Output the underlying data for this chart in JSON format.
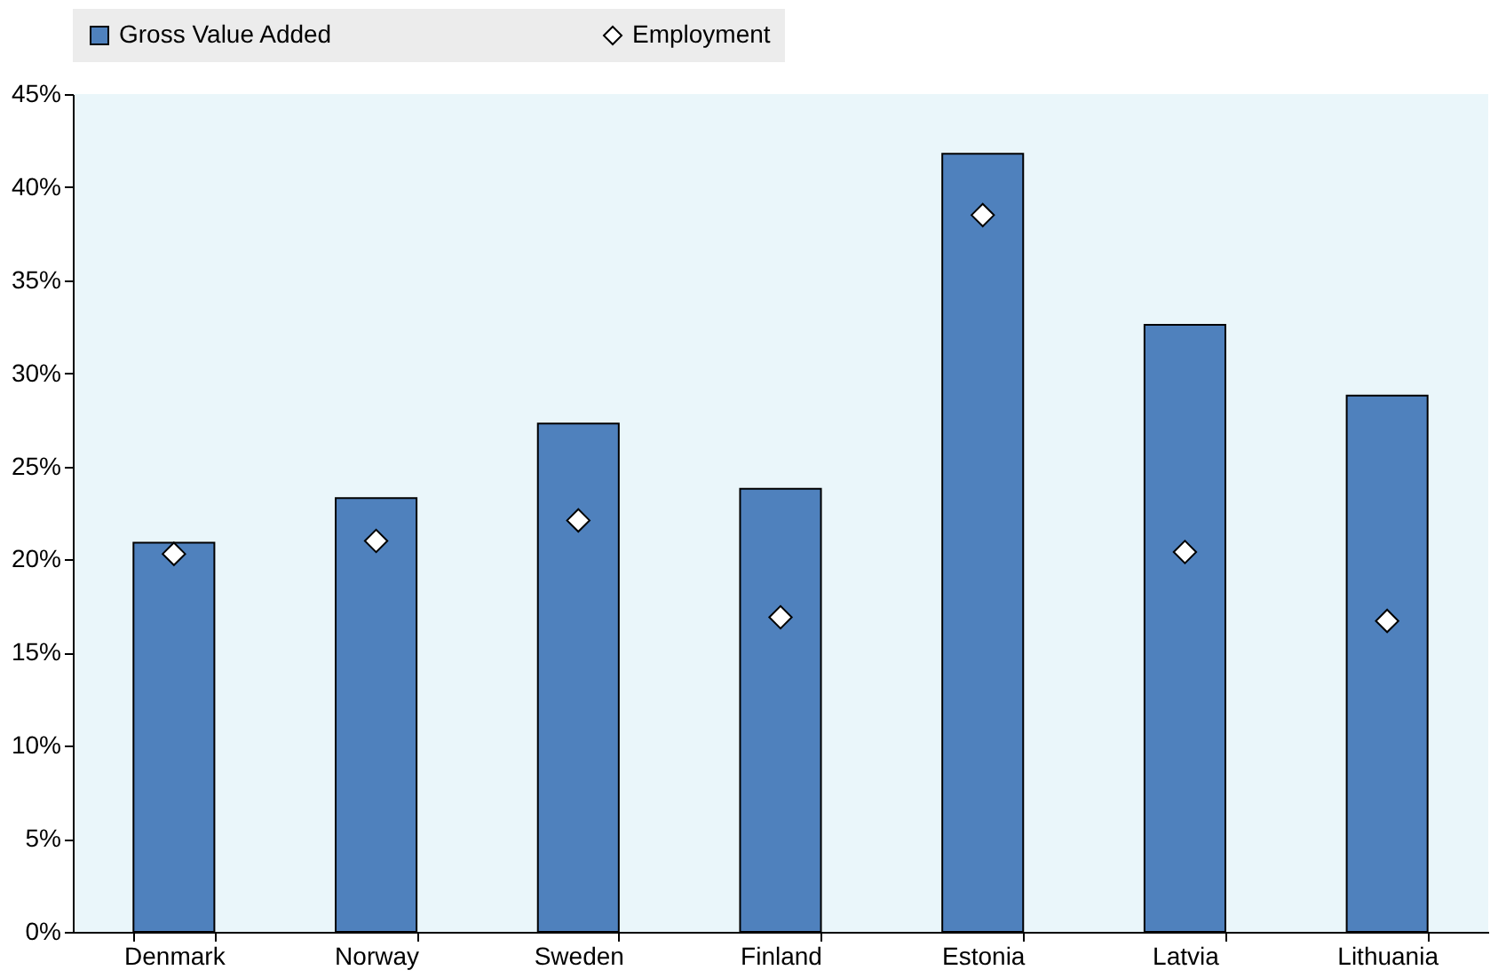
{
  "chart_data": {
    "type": "bar",
    "categories": [
      "Denmark",
      "Norway",
      "Sweden",
      "Finland",
      "Estonia",
      "Latvia",
      "Lithuania"
    ],
    "series": [
      {
        "name": "Gross Value Added",
        "color": "#4f81bd",
        "values": [
          20.9,
          23.3,
          27.3,
          23.8,
          41.8,
          32.6,
          28.8
        ]
      },
      {
        "name": "Employment",
        "type": "scatter",
        "color": "#ffffff",
        "marker": "diamond",
        "values": [
          20.3,
          21.0,
          22.1,
          16.9,
          38.5,
          20.4,
          16.7
        ]
      }
    ],
    "ylim": [
      0,
      45
    ],
    "yticks": [
      {
        "value": 0,
        "label": "0%"
      },
      {
        "value": 5,
        "label": "5%"
      },
      {
        "value": 10,
        "label": "10%"
      },
      {
        "value": 15,
        "label": "15%"
      },
      {
        "value": 20,
        "label": "20%"
      },
      {
        "value": 25,
        "label": "25%"
      },
      {
        "value": 30,
        "label": "30%"
      },
      {
        "value": 35,
        "label": "35%"
      },
      {
        "value": 40,
        "label": "40%"
      },
      {
        "value": 45,
        "label": "45%"
      }
    ],
    "grid": false,
    "legend": "top"
  }
}
